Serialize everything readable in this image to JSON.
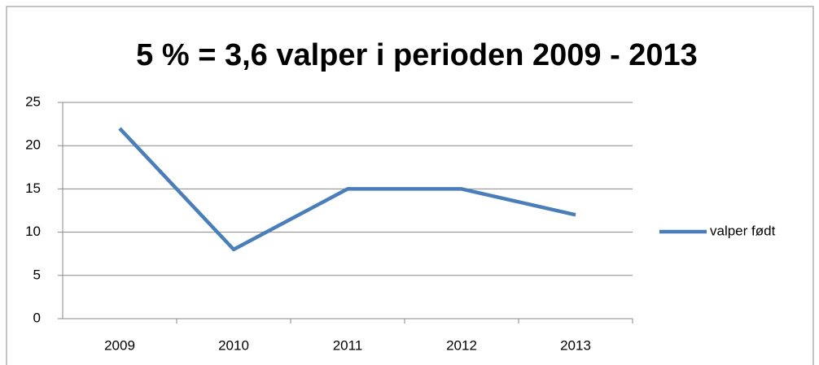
{
  "chart_data": {
    "type": "line",
    "title": "5 % = 3,6 valper i perioden 2009 - 2013",
    "categories": [
      "2009",
      "2010",
      "2011",
      "2012",
      "2013"
    ],
    "series": [
      {
        "name": "valper født",
        "color": "#4a7ebb",
        "values": [
          22,
          8,
          15,
          15,
          12
        ]
      }
    ],
    "ylim": [
      0,
      25
    ],
    "yticks": [
      0,
      5,
      10,
      15,
      20,
      25
    ],
    "grid": true,
    "legend": "right"
  }
}
